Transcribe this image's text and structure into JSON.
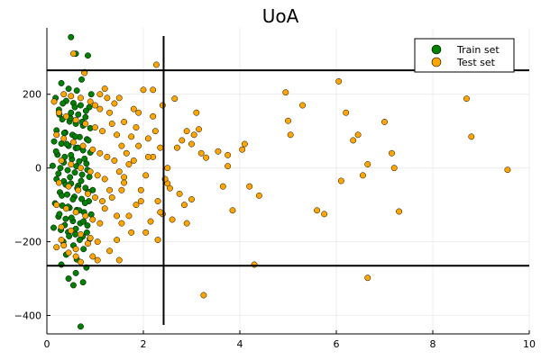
{
  "chart_data": {
    "type": "scatter",
    "title": "UoA",
    "xlabel": "",
    "ylabel": "",
    "xlim": [
      0,
      10
    ],
    "ylim": [
      -450,
      380
    ],
    "x_ticks": [
      0,
      2,
      4,
      6,
      8,
      10
    ],
    "y_ticks": [
      -400,
      -200,
      0,
      200
    ],
    "x_tick_labels": [
      "0",
      "2",
      "4",
      "6",
      "8",
      "10"
    ],
    "y_tick_labels": [
      "−400",
      "−200",
      "0",
      "200"
    ],
    "grid": true,
    "legend_position": "top-right",
    "reference_lines": {
      "horizontal": [
        265,
        -265
      ],
      "vertical": [
        2.42
      ]
    },
    "series": [
      {
        "name": "Train set",
        "color": "#008000",
        "points": [
          [
            0.5,
            355
          ],
          [
            0.6,
            310
          ],
          [
            0.85,
            305
          ],
          [
            0.78,
            260
          ],
          [
            0.72,
            240
          ],
          [
            0.3,
            230
          ],
          [
            0.45,
            215
          ],
          [
            0.62,
            210
          ],
          [
            0.92,
            200
          ],
          [
            0.18,
            190
          ],
          [
            0.4,
            182
          ],
          [
            0.55,
            176
          ],
          [
            0.7,
            170
          ],
          [
            0.88,
            165
          ],
          [
            0.25,
            158
          ],
          [
            0.5,
            150
          ],
          [
            0.65,
            145
          ],
          [
            0.8,
            138
          ],
          [
            0.32,
            132
          ],
          [
            0.47,
            126
          ],
          [
            0.6,
            120
          ],
          [
            0.75,
            115
          ],
          [
            0.9,
            108
          ],
          [
            0.2,
            102
          ],
          [
            0.38,
            96
          ],
          [
            0.53,
            90
          ],
          [
            0.68,
            84
          ],
          [
            0.83,
            78
          ],
          [
            0.15,
            72
          ],
          [
            0.3,
            66
          ],
          [
            0.45,
            60
          ],
          [
            0.6,
            54
          ],
          [
            0.75,
            48
          ],
          [
            0.9,
            42
          ],
          [
            0.22,
            36
          ],
          [
            0.37,
            30
          ],
          [
            0.52,
            24
          ],
          [
            0.67,
            18
          ],
          [
            0.82,
            12
          ],
          [
            0.12,
            6
          ],
          [
            0.28,
            0
          ],
          [
            0.43,
            -6
          ],
          [
            0.58,
            -12
          ],
          [
            0.73,
            -18
          ],
          [
            0.88,
            -24
          ],
          [
            0.2,
            -30
          ],
          [
            0.35,
            -36
          ],
          [
            0.5,
            -42
          ],
          [
            0.65,
            -48
          ],
          [
            0.8,
            -54
          ],
          [
            0.95,
            -60
          ],
          [
            0.27,
            -66
          ],
          [
            0.42,
            -72
          ],
          [
            0.57,
            -78
          ],
          [
            0.72,
            -84
          ],
          [
            0.87,
            -90
          ],
          [
            0.17,
            -96
          ],
          [
            0.32,
            -102
          ],
          [
            0.47,
            -108
          ],
          [
            0.62,
            -114
          ],
          [
            0.77,
            -120
          ],
          [
            0.92,
            -126
          ],
          [
            0.24,
            -132
          ],
          [
            0.39,
            -138
          ],
          [
            0.54,
            -144
          ],
          [
            0.69,
            -150
          ],
          [
            0.84,
            -156
          ],
          [
            0.14,
            -162
          ],
          [
            0.29,
            -168
          ],
          [
            0.44,
            -174
          ],
          [
            0.59,
            -180
          ],
          [
            0.74,
            -186
          ],
          [
            0.89,
            -192
          ],
          [
            0.34,
            -200
          ],
          [
            0.55,
            -210
          ],
          [
            0.76,
            -220
          ],
          [
            0.4,
            -235
          ],
          [
            0.62,
            -248
          ],
          [
            0.3,
            -262
          ],
          [
            0.82,
            -270
          ],
          [
            0.6,
            -285
          ],
          [
            0.45,
            -300
          ],
          [
            0.75,
            -310
          ],
          [
            0.55,
            -318
          ],
          [
            0.7,
            -430
          ],
          [
            0.33,
            175
          ],
          [
            0.58,
            165
          ],
          [
            0.81,
            155
          ],
          [
            0.26,
            145
          ],
          [
            0.49,
            135
          ],
          [
            0.73,
            125
          ],
          [
            0.36,
            95
          ],
          [
            0.59,
            85
          ],
          [
            0.86,
            75
          ],
          [
            0.41,
            65
          ],
          [
            0.64,
            55
          ],
          [
            0.19,
            45
          ],
          [
            0.5,
            35
          ],
          [
            0.78,
            25
          ],
          [
            0.35,
            15
          ],
          [
            0.61,
            5
          ],
          [
            0.84,
            -5
          ],
          [
            0.24,
            -15
          ],
          [
            0.48,
            -25
          ],
          [
            0.71,
            -35
          ],
          [
            0.39,
            -45
          ],
          [
            0.63,
            -55
          ],
          [
            0.86,
            -65
          ],
          [
            0.31,
            -75
          ],
          [
            0.54,
            -85
          ],
          [
            0.79,
            -95
          ],
          [
            0.44,
            -105
          ],
          [
            0.67,
            -115
          ],
          [
            0.26,
            -125
          ],
          [
            0.51,
            -135
          ],
          [
            0.76,
            -145
          ],
          [
            0.37,
            -155
          ],
          [
            0.6,
            -165
          ],
          [
            0.83,
            -175
          ],
          [
            0.46,
            -185
          ],
          [
            0.68,
            -195
          ]
        ]
      },
      {
        "name": "Test set",
        "color": "#FFA500",
        "points": [
          [
            0.55,
            310
          ],
          [
            2.27,
            280
          ],
          [
            0.78,
            258
          ],
          [
            1.2,
            215
          ],
          [
            1.1,
            200
          ],
          [
            1.5,
            190
          ],
          [
            1.4,
            175
          ],
          [
            1.8,
            160
          ],
          [
            1.9,
            150
          ],
          [
            2.0,
            212
          ],
          [
            2.2,
            212
          ],
          [
            2.4,
            170
          ],
          [
            2.65,
            188
          ],
          [
            3.1,
            150
          ],
          [
            3.15,
            105
          ],
          [
            2.9,
            100
          ],
          [
            3.05,
            90
          ],
          [
            2.8,
            75
          ],
          [
            3.0,
            65
          ],
          [
            2.7,
            55
          ],
          [
            3.2,
            40
          ],
          [
            3.3,
            28
          ],
          [
            3.55,
            45
          ],
          [
            3.75,
            35
          ],
          [
            3.75,
            5
          ],
          [
            4.1,
            65
          ],
          [
            4.05,
            50
          ],
          [
            4.2,
            -50
          ],
          [
            4.4,
            -75
          ],
          [
            3.65,
            -50
          ],
          [
            3.85,
            -115
          ],
          [
            2.75,
            -70
          ],
          [
            2.85,
            -100
          ],
          [
            2.9,
            -150
          ],
          [
            3.0,
            -85
          ],
          [
            2.6,
            -140
          ],
          [
            2.5,
            -42
          ],
          [
            2.55,
            -55
          ],
          [
            2.4,
            -125
          ],
          [
            2.3,
            -195
          ],
          [
            2.05,
            -175
          ],
          [
            1.75,
            -175
          ],
          [
            1.45,
            -195
          ],
          [
            1.5,
            -250
          ],
          [
            1.3,
            -225
          ],
          [
            1.05,
            -250
          ],
          [
            1.2,
            -110
          ],
          [
            1.3,
            -60
          ],
          [
            1.55,
            -60
          ],
          [
            1.6,
            -25
          ],
          [
            1.7,
            10
          ],
          [
            1.8,
            20
          ],
          [
            1.9,
            60
          ],
          [
            2.1,
            80
          ],
          [
            2.2,
            30
          ],
          [
            2.35,
            55
          ],
          [
            2.45,
            -30
          ],
          [
            2.5,
            0
          ],
          [
            1.95,
            -90
          ],
          [
            2.15,
            -145
          ],
          [
            3.25,
            -345
          ],
          [
            4.3,
            -262
          ],
          [
            4.95,
            205
          ],
          [
            5.0,
            128
          ],
          [
            5.05,
            90
          ],
          [
            5.3,
            170
          ],
          [
            5.6,
            -115
          ],
          [
            5.75,
            -125
          ],
          [
            6.05,
            235
          ],
          [
            6.1,
            -35
          ],
          [
            6.2,
            150
          ],
          [
            6.35,
            75
          ],
          [
            6.45,
            90
          ],
          [
            6.55,
            -20
          ],
          [
            6.65,
            10
          ],
          [
            6.65,
            -298
          ],
          [
            7.0,
            125
          ],
          [
            7.15,
            40
          ],
          [
            7.2,
            0
          ],
          [
            7.3,
            -118
          ],
          [
            8.7,
            188
          ],
          [
            8.8,
            85
          ],
          [
            9.55,
            -5
          ],
          [
            0.2,
            -215
          ],
          [
            0.3,
            -195
          ],
          [
            0.45,
            -230
          ],
          [
            0.6,
            -240
          ],
          [
            0.95,
            -240
          ],
          [
            0.7,
            -255
          ],
          [
            0.15,
            180
          ],
          [
            0.35,
            200
          ],
          [
            0.5,
            195
          ],
          [
            0.7,
            190
          ],
          [
            0.9,
            180
          ],
          [
            1.0,
            170
          ],
          [
            1.1,
            160
          ],
          [
            0.25,
            150
          ],
          [
            0.4,
            140
          ],
          [
            0.6,
            130
          ],
          [
            0.8,
            120
          ],
          [
            1.0,
            110
          ],
          [
            1.15,
            100
          ],
          [
            0.2,
            90
          ],
          [
            0.35,
            80
          ],
          [
            0.55,
            70
          ],
          [
            0.75,
            60
          ],
          [
            0.95,
            50
          ],
          [
            1.1,
            40
          ],
          [
            1.25,
            30
          ],
          [
            0.3,
            20
          ],
          [
            0.5,
            10
          ],
          [
            0.7,
            0
          ],
          [
            0.9,
            -10
          ],
          [
            1.05,
            -20
          ],
          [
            1.2,
            -30
          ],
          [
            0.25,
            -40
          ],
          [
            0.45,
            -50
          ],
          [
            0.65,
            -60
          ],
          [
            0.85,
            -70
          ],
          [
            1.0,
            -80
          ],
          [
            1.15,
            -90
          ],
          [
            0.2,
            -100
          ],
          [
            0.4,
            -110
          ],
          [
            0.6,
            -120
          ],
          [
            0.8,
            -130
          ],
          [
            0.95,
            -140
          ],
          [
            1.1,
            -150
          ],
          [
            0.3,
            -160
          ],
          [
            0.5,
            -170
          ],
          [
            0.7,
            -180
          ],
          [
            0.9,
            -190
          ],
          [
            1.05,
            -200
          ],
          [
            0.35,
            -210
          ],
          [
            0.6,
            -220
          ],
          [
            0.85,
            -205
          ],
          [
            1.35,
            120
          ],
          [
            1.45,
            90
          ],
          [
            1.55,
            60
          ],
          [
            1.65,
            40
          ],
          [
            1.4,
            20
          ],
          [
            1.5,
            -10
          ],
          [
            1.6,
            -40
          ],
          [
            1.35,
            -80
          ],
          [
            1.45,
            -130
          ],
          [
            1.55,
            -150
          ],
          [
            1.7,
            -130
          ],
          [
            1.85,
            -100
          ],
          [
            1.95,
            -60
          ],
          [
            2.05,
            -20
          ],
          [
            2.1,
            30
          ],
          [
            2.25,
            100
          ],
          [
            2.2,
            140
          ],
          [
            1.85,
            110
          ],
          [
            1.6,
            125
          ],
          [
            1.75,
            85
          ],
          [
            1.25,
            190
          ],
          [
            1.3,
            150
          ],
          [
            2.3,
            -90
          ],
          [
            2.35,
            -120
          ]
        ]
      }
    ]
  }
}
